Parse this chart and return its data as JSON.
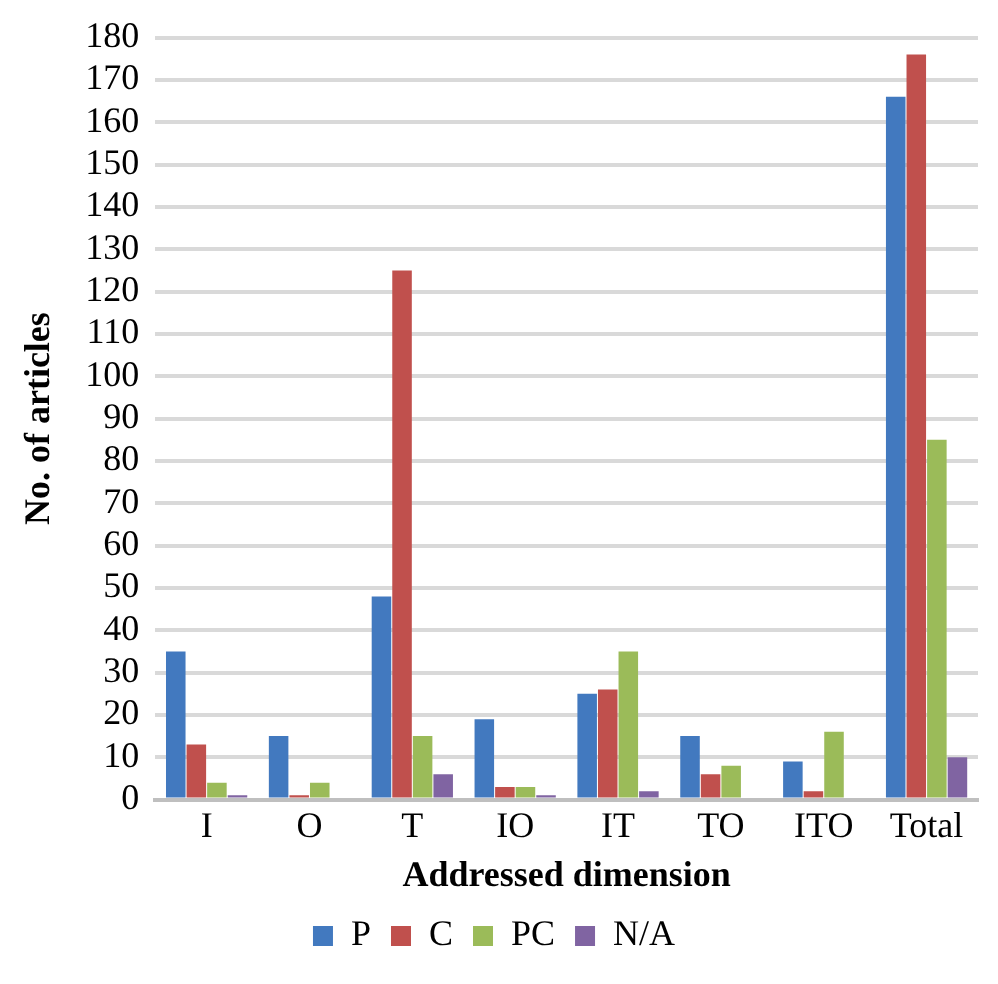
{
  "chart_data": {
    "type": "bar",
    "xlabel": "Addressed dimension",
    "ylabel": "No. of articles",
    "categories": [
      "I",
      "O",
      "T",
      "IO",
      "IT",
      "TO",
      "ITO",
      "Total"
    ],
    "series": [
      {
        "name": "P",
        "color": "#4279bf",
        "values": [
          35,
          15,
          48,
          19,
          25,
          15,
          9,
          166
        ]
      },
      {
        "name": "C",
        "color": "#c0504d",
        "values": [
          13,
          1,
          125,
          3,
          26,
          6,
          2,
          176
        ]
      },
      {
        "name": "PC",
        "color": "#9bbb59",
        "values": [
          4,
          4,
          15,
          3,
          35,
          8,
          16,
          85
        ]
      },
      {
        "name": "N/A",
        "color": "#8064a2",
        "values": [
          1,
          0,
          6,
          1,
          2,
          0,
          0,
          10
        ]
      }
    ],
    "ylim": [
      0,
      180
    ],
    "yticks": [
      0,
      10,
      20,
      30,
      40,
      50,
      60,
      70,
      80,
      90,
      100,
      110,
      120,
      130,
      140,
      150,
      160,
      170,
      180
    ],
    "grid": "y",
    "legend": "bottom"
  }
}
